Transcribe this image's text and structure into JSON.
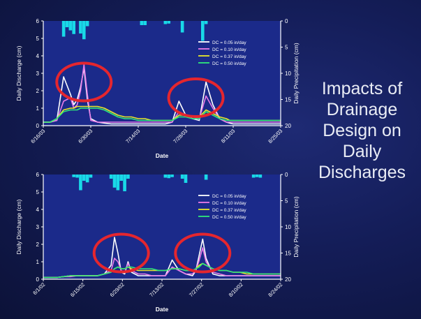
{
  "slide": {
    "title_lines": [
      "Impacts of",
      "Drainage",
      "Design on",
      "Daily",
      "Discharges"
    ]
  },
  "colors": {
    "background": "#141d58",
    "plot_bg": "#1b2a8a",
    "axis": "#ffffff",
    "precip": "#19d9e8",
    "circle": "#e5262e"
  },
  "chart_data": [
    {
      "type": "line",
      "title": "",
      "xlabel": "Date",
      "ylabel": "Daily Discharge (cm)",
      "ylabel_right": "Daily Precipitation (cm)",
      "ylim": [
        0,
        6
      ],
      "ylim_right": [
        0,
        20
      ],
      "right_axis_inverted": true,
      "yticks": [
        "0",
        "1",
        "2",
        "3",
        "4",
        "5",
        "6"
      ],
      "yticks_right": [
        "0",
        "5",
        "10",
        "15",
        "20"
      ],
      "x_tick_labels": [
        "6/16/03",
        "6/30/03",
        "7/14/03",
        "7/28/03",
        "8/11/03",
        "8/25/03"
      ],
      "x": [
        0,
        2,
        4,
        6,
        8,
        9,
        10,
        11,
        12,
        13,
        14,
        16,
        18,
        20,
        22,
        24,
        26,
        28,
        30,
        32,
        34,
        36,
        38,
        40,
        42,
        44,
        46,
        48,
        50,
        52,
        54,
        55,
        56,
        57,
        58,
        59,
        60,
        62,
        64,
        66,
        68,
        70
      ],
      "series": [
        {
          "name": "DC = 0.05 in/day",
          "color": "#ffffff",
          "values": [
            0.2,
            0.2,
            0.3,
            2.8,
            1.8,
            1.2,
            1.5,
            2.2,
            3.3,
            1.5,
            0.4,
            0.2,
            0.15,
            0.1,
            0.1,
            0.1,
            0.1,
            0.1,
            0.1,
            0.1,
            0.1,
            0.1,
            0.2,
            1.4,
            0.6,
            0.4,
            0.3,
            2.5,
            1.2,
            0.4,
            0.2,
            0.15,
            0.1,
            0.1,
            0.1,
            0.1,
            0.1,
            0.1,
            0.1,
            0.1,
            0.1,
            0.1
          ]
        },
        {
          "name": "DC = 0.10 in/day",
          "color": "#e87be8",
          "values": [
            0.2,
            0.2,
            0.3,
            1.4,
            1.6,
            1.0,
            1.2,
            2.0,
            3.5,
            1.8,
            0.3,
            0.2,
            0.2,
            0.2,
            0.2,
            0.2,
            0.2,
            0.2,
            0.2,
            0.2,
            0.2,
            0.2,
            0.2,
            0.8,
            0.6,
            0.5,
            0.4,
            1.7,
            1.0,
            0.4,
            0.2,
            0.2,
            0.2,
            0.2,
            0.2,
            0.2,
            0.2,
            0.2,
            0.2,
            0.2,
            0.2,
            0.2
          ]
        },
        {
          "name": "DC = 0.37 in/day",
          "color": "#e8e82a",
          "values": [
            0.2,
            0.2,
            0.4,
            0.9,
            1.0,
            1.0,
            1.1,
            1.1,
            1.1,
            1.1,
            1.1,
            1.1,
            1.0,
            0.8,
            0.6,
            0.5,
            0.5,
            0.4,
            0.4,
            0.3,
            0.3,
            0.3,
            0.3,
            0.6,
            0.6,
            0.5,
            0.5,
            0.9,
            0.7,
            0.5,
            0.4,
            0.3,
            0.3,
            0.3,
            0.3,
            0.3,
            0.3,
            0.3,
            0.3,
            0.3,
            0.3,
            0.3
          ]
        },
        {
          "name": "DC = 0.50 in/day",
          "color": "#2ee87a",
          "values": [
            0.2,
            0.2,
            0.4,
            0.8,
            0.9,
            0.9,
            0.9,
            1.0,
            1.0,
            1.0,
            1.0,
            1.0,
            0.9,
            0.7,
            0.5,
            0.4,
            0.4,
            0.3,
            0.3,
            0.3,
            0.3,
            0.3,
            0.3,
            0.5,
            0.5,
            0.4,
            0.4,
            0.8,
            0.6,
            0.4,
            0.3,
            0.3,
            0.3,
            0.3,
            0.3,
            0.3,
            0.3,
            0.3,
            0.3,
            0.3,
            0.3,
            0.3
          ]
        }
      ],
      "precipitation": {
        "x": [
          6,
          7,
          8,
          9,
          11,
          12,
          13,
          29,
          30,
          36,
          37,
          41,
          47,
          48
        ],
        "values": [
          3.0,
          1.2,
          1.8,
          2.5,
          2.4,
          3.5,
          1.0,
          0.8,
          0.8,
          0.6,
          0.5,
          2.2,
          3.8,
          0.6
        ]
      },
      "annotations": [
        {
          "type": "circle",
          "x": 12,
          "y": 2.5
        },
        {
          "type": "circle",
          "x": 45,
          "y": 1.6
        }
      ],
      "legend": "top-right"
    },
    {
      "type": "line",
      "title": "",
      "xlabel": "Date",
      "ylabel": "Daily Discharge (cm)",
      "ylabel_right": "Daily Precipitation (cm)",
      "ylim": [
        0,
        6
      ],
      "ylim_right": [
        0,
        20
      ],
      "right_axis_inverted": true,
      "yticks": [
        "0",
        "1",
        "2",
        "3",
        "4",
        "5",
        "6"
      ],
      "yticks_right": [
        "0",
        "5",
        "10",
        "15",
        "20"
      ],
      "x_tick_labels": [
        "6/1/02",
        "6/15/02",
        "6/29/02",
        "7/13/02",
        "7/27/02",
        "8/10/02",
        "8/24/02"
      ],
      "x": [
        0,
        2,
        4,
        6,
        8,
        10,
        12,
        14,
        16,
        18,
        20,
        21,
        22,
        23,
        24,
        25,
        26,
        28,
        30,
        32,
        34,
        36,
        38,
        40,
        42,
        44,
        45,
        46,
        47,
        48,
        50,
        52,
        54,
        56,
        58,
        60,
        62,
        64,
        66,
        68,
        70
      ],
      "series": [
        {
          "name": "DC = 0.05 in/day",
          "color": "#ffffff",
          "values": [
            0.1,
            0.1,
            0.1,
            0.15,
            0.2,
            0.2,
            0.2,
            0.2,
            0.2,
            0.3,
            0.8,
            2.4,
            1.5,
            0.4,
            0.3,
            1.0,
            0.4,
            0.2,
            0.2,
            0.2,
            0.2,
            0.2,
            1.1,
            0.5,
            0.3,
            0.2,
            0.5,
            1.4,
            2.3,
            1.2,
            0.3,
            0.2,
            0.2,
            0.2,
            0.2,
            0.2,
            0.2,
            0.2,
            0.2,
            0.2,
            0.2
          ]
        },
        {
          "name": "DC = 0.10 in/day",
          "color": "#e87be8",
          "values": [
            0.1,
            0.1,
            0.1,
            0.15,
            0.15,
            0.2,
            0.2,
            0.2,
            0.2,
            0.3,
            0.5,
            1.2,
            1.0,
            0.5,
            0.4,
            0.9,
            0.5,
            0.3,
            0.3,
            0.2,
            0.2,
            0.2,
            0.7,
            0.5,
            0.3,
            0.3,
            0.5,
            1.1,
            1.8,
            1.0,
            0.4,
            0.3,
            0.2,
            0.2,
            0.2,
            0.2,
            0.2,
            0.2,
            0.2,
            0.2,
            0.2
          ]
        },
        {
          "name": "DC = 0.37 in/day",
          "color": "#e8e82a",
          "values": [
            0.1,
            0.1,
            0.1,
            0.15,
            0.2,
            0.2,
            0.2,
            0.2,
            0.2,
            0.3,
            0.4,
            0.6,
            0.7,
            0.6,
            0.6,
            0.7,
            0.6,
            0.5,
            0.5,
            0.5,
            0.5,
            0.5,
            0.6,
            0.6,
            0.5,
            0.5,
            0.6,
            0.8,
            0.9,
            0.8,
            0.6,
            0.5,
            0.5,
            0.4,
            0.4,
            0.3,
            0.3,
            0.3,
            0.3,
            0.3,
            0.3
          ]
        },
        {
          "name": "DC = 0.50 in/day",
          "color": "#2ee87a",
          "values": [
            0.1,
            0.1,
            0.1,
            0.15,
            0.2,
            0.2,
            0.2,
            0.2,
            0.2,
            0.3,
            0.4,
            0.6,
            0.7,
            0.6,
            0.6,
            0.7,
            0.7,
            0.6,
            0.6,
            0.6,
            0.5,
            0.5,
            0.6,
            0.6,
            0.5,
            0.5,
            0.6,
            0.7,
            0.9,
            0.8,
            0.6,
            0.5,
            0.5,
            0.4,
            0.4,
            0.4,
            0.3,
            0.3,
            0.3,
            0.3,
            0.3
          ]
        }
      ],
      "precipitation": {
        "x": [
          9,
          10,
          11,
          12,
          13,
          14,
          20,
          21,
          22,
          23,
          24,
          25,
          36,
          37,
          38,
          41,
          42,
          48,
          62,
          63,
          64
        ],
        "values": [
          0.5,
          0.6,
          3.0,
          1.2,
          1.5,
          0.6,
          0.8,
          2.5,
          3.0,
          1.2,
          3.2,
          0.8,
          0.6,
          0.7,
          0.5,
          0.8,
          1.6,
          1.0,
          0.6,
          0.5,
          0.6
        ]
      },
      "annotations": [
        {
          "type": "circle",
          "x": 23,
          "y": 1.5
        },
        {
          "type": "circle",
          "x": 47,
          "y": 1.5
        }
      ],
      "legend": "top-right"
    }
  ]
}
